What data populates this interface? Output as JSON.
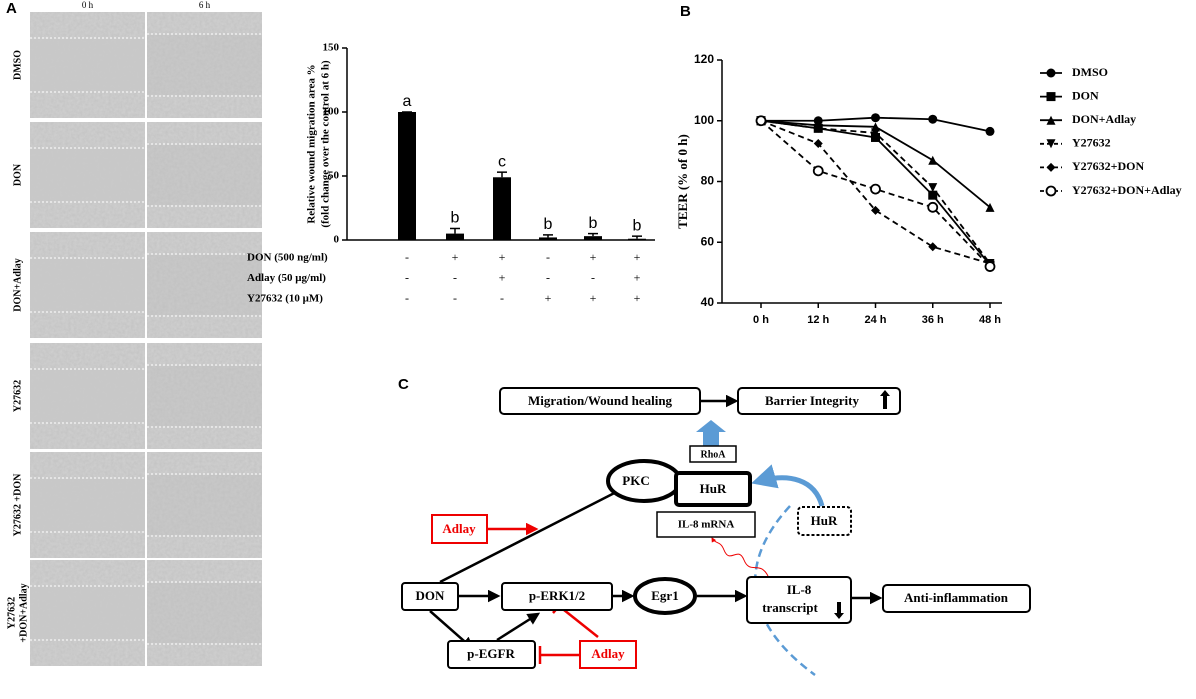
{
  "panels": [
    "A",
    "B",
    "C"
  ],
  "micrographs": {
    "columns": [
      "0 h",
      "6 h"
    ],
    "rows": [
      [
        "DMSO"
      ],
      [
        "DON"
      ],
      [
        "DON+Adlay"
      ],
      [
        "Y27632"
      ],
      [
        "Y27632 +DON"
      ],
      [
        "Y27632",
        "+DON+Adlay"
      ]
    ]
  },
  "chart_data": [
    {
      "type": "bar",
      "ylabel": [
        "Relative wound migration area %",
        "(fold change over the control at 6 h)"
      ],
      "categories": [
        null,
        null,
        null,
        null,
        null,
        null
      ],
      "values": [
        100,
        5,
        49,
        2,
        3,
        1
      ],
      "errors": [
        0,
        4,
        4,
        2,
        2,
        2
      ],
      "annotations": [
        "a",
        "b",
        "c",
        "b",
        "b",
        "b"
      ],
      "color": "#000000",
      "ylim": [
        0,
        150
      ],
      "yticks": [
        0,
        50,
        100,
        150
      ],
      "treatments": [
        {
          "label": "DON (500 ng/ml)",
          "marks": [
            "-",
            "+",
            "+",
            "-",
            "+",
            "+"
          ]
        },
        {
          "label": "Adlay (50 μg/ml)",
          "marks": [
            "-",
            "-",
            "+",
            "-",
            "-",
            "+"
          ]
        },
        {
          "label": "Y27632 (10 μM)",
          "marks": [
            "-",
            "-",
            "-",
            "+",
            "+",
            "+"
          ]
        }
      ]
    },
    {
      "type": "line",
      "ylabel": "TEER (% of 0 h)",
      "categories": [
        "0 h",
        "12 h",
        "24 h",
        "36 h",
        "48 h"
      ],
      "ylim": [
        40,
        120
      ],
      "yticks": [
        40,
        60,
        80,
        100,
        120
      ],
      "legend": "right",
      "series": [
        {
          "name": "DMSO",
          "color": "#000000",
          "marker": "circle",
          "linestyle": "solid",
          "values": [
            100,
            100,
            101,
            100.5,
            96.5
          ]
        },
        {
          "name": "DON",
          "color": "#000000",
          "marker": "square",
          "linestyle": "solid",
          "values": [
            100,
            97.5,
            94.5,
            75.5,
            52.5
          ]
        },
        {
          "name": "DON+Adlay",
          "color": "#000000",
          "marker": "triangle",
          "linestyle": "solid",
          "values": [
            100,
            98.5,
            98,
            87,
            71.5
          ]
        },
        {
          "name": "Y27632",
          "color": "#000000",
          "marker": "triangle-down",
          "linestyle": "dashed",
          "values": [
            100,
            97.5,
            96,
            78,
            53
          ]
        },
        {
          "name": "Y27632+DON",
          "color": "#000000",
          "marker": "diamond",
          "linestyle": "dashed",
          "values": [
            100,
            92.5,
            70.5,
            58.5,
            53
          ]
        },
        {
          "name": "Y27632+DON+Adlay",
          "color": "#000000",
          "marker": "open-circle",
          "linestyle": "dashed",
          "values": [
            100,
            83.5,
            77.5,
            71.5,
            52
          ]
        }
      ]
    }
  ],
  "diagram": {
    "nodes": [
      {
        "lines": [
          "Migration/Wound healing"
        ]
      },
      {
        "lines": [
          "Barrier Integrity"
        ]
      },
      {
        "lines": [
          "RhoA"
        ]
      },
      {
        "lines": [
          "PKC"
        ]
      },
      {
        "lines": [
          "HuR"
        ]
      },
      {
        "lines": [
          "IL-8 mRNA"
        ]
      },
      {
        "lines": [
          "HuR"
        ]
      },
      {
        "lines": [
          "Adlay"
        ]
      },
      {
        "lines": [
          "DON"
        ]
      },
      {
        "lines": [
          "p-ERK1/2"
        ]
      },
      {
        "lines": [
          "Egr1"
        ]
      },
      {
        "lines": [
          "IL-8",
          "transcript"
        ]
      },
      {
        "lines": [
          "Anti-inflammation"
        ]
      },
      {
        "lines": [
          "p-EGFR"
        ]
      },
      {
        "lines": [
          "Adlay"
        ]
      }
    ]
  }
}
